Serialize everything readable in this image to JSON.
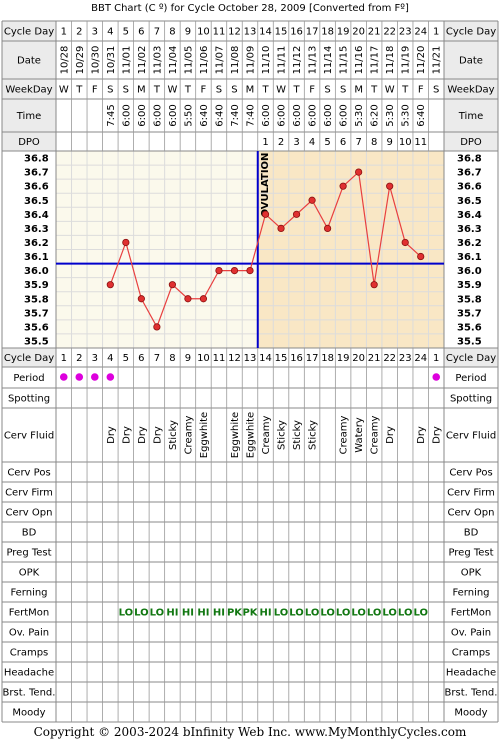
{
  "title": "BBT Chart (C º) for Cycle October 28, 2009  [Converted from Fº]",
  "footer": "Copyright © 2003-2024 bInfinity Web Inc.    www.MyMonthlyCycles.com",
  "colors": {
    "header_bg": "#ebebeb",
    "follicular_bg": "#fbf9ec",
    "luteal_bg": "#f9e7c5",
    "grid": "#dcdcdc",
    "coverline": "#0000cc",
    "ovulation_line": "#0000cc",
    "temp_line": "#e84040",
    "temp_point": "#e03030",
    "period_dot": "#dd00dd",
    "fertmon_text": "#117711"
  },
  "row_labels": {
    "cycle_day": "Cycle Day",
    "date": "Date",
    "weekday": "WeekDay",
    "time": "Time",
    "dpo": "DPO",
    "period": "Period",
    "spotting": "Spotting",
    "cerv_fluid": "Cerv Fluid",
    "cerv_pos": "Cerv Pos",
    "cerv_firm": "Cerv Firm",
    "cerv_opn": "Cerv Opn",
    "bd": "BD",
    "preg_test": "Preg Test",
    "opk": "OPK",
    "ferning": "Ferning",
    "fertmon": "FertMon",
    "ov_pain": "Ov. Pain",
    "cramps": "Cramps",
    "headache": "Headache",
    "brst_tend": "Brst. Tend.",
    "moody": "Moody"
  },
  "cycle_days": [
    "1",
    "2",
    "3",
    "4",
    "5",
    "6",
    "7",
    "8",
    "9",
    "10",
    "11",
    "12",
    "13",
    "14",
    "15",
    "16",
    "17",
    "18",
    "19",
    "20",
    "21",
    "22",
    "23",
    "24",
    "1"
  ],
  "dates": [
    "10/28",
    "10/29",
    "10/30",
    "10/31",
    "11/01",
    "11/02",
    "11/03",
    "11/04",
    "11/05",
    "11/06",
    "11/07",
    "11/08",
    "11/09",
    "11/10",
    "11/11",
    "11/12",
    "11/13",
    "11/14",
    "11/15",
    "11/16",
    "11/17",
    "11/18",
    "11/19",
    "11/20",
    "11/21"
  ],
  "weekdays": [
    "W",
    "T",
    "F",
    "S",
    "S",
    "M",
    "T",
    "W",
    "T",
    "F",
    "S",
    "S",
    "M",
    "T",
    "W",
    "T",
    "F",
    "S",
    "S",
    "M",
    "T",
    "W",
    "T",
    "F",
    "S"
  ],
  "times": [
    "",
    "",
    "",
    "7:45",
    "6:00",
    "6:00",
    "6:00",
    "6:00",
    "5:50",
    "6:40",
    "6:40",
    "7:40",
    "7:40",
    "6:00",
    "6:00",
    "6:00",
    "6:00",
    "6:00",
    "6:00",
    "5:30",
    "6:20",
    "5:30",
    "5:30",
    "6:40",
    ""
  ],
  "dpo": [
    "",
    "",
    "",
    "",
    "",
    "",
    "",
    "",
    "",
    "",
    "",
    "",
    "",
    "1",
    "2",
    "3",
    "4",
    "5",
    "6",
    "7",
    "8",
    "9",
    "10",
    "11",
    ""
  ],
  "period": [
    true,
    true,
    true,
    true,
    false,
    false,
    false,
    false,
    false,
    false,
    false,
    false,
    false,
    false,
    false,
    false,
    false,
    false,
    false,
    false,
    false,
    false,
    false,
    false,
    true
  ],
  "cerv_fluid": [
    "",
    "",
    "",
    "Dry",
    "Dry",
    "Dry",
    "Dry",
    "Sticky",
    "Creamy",
    "Eggwhite",
    "",
    "Eggwhite",
    "Eggwhite",
    "Creamy",
    "Sticky",
    "Sticky",
    "Sticky",
    "",
    "Creamy",
    "Watery",
    "Creamy",
    "Dry",
    "",
    "Dry",
    "Dry"
  ],
  "fertmon": [
    "",
    "",
    "",
    "",
    "LO",
    "LO",
    "LO",
    "HI",
    "HI",
    "HI",
    "HI",
    "PK",
    "PK",
    "HI",
    "LO",
    "LO",
    "LO",
    "LO",
    "LO",
    "LO",
    "LO",
    "LO",
    "LO",
    "LO",
    ""
  ],
  "ovulation_label": "OVULATION",
  "chart_data": {
    "type": "line",
    "x": [
      1,
      2,
      3,
      4,
      5,
      6,
      7,
      8,
      9,
      10,
      11,
      12,
      13,
      14,
      15,
      16,
      17,
      18,
      19,
      20,
      21,
      22,
      23,
      24,
      25
    ],
    "temps": [
      null,
      null,
      null,
      35.9,
      36.2,
      35.8,
      35.6,
      35.9,
      35.8,
      35.8,
      36.0,
      36.0,
      36.0,
      36.4,
      36.3,
      36.4,
      36.5,
      36.3,
      36.6,
      36.7,
      35.9,
      36.6,
      36.2,
      36.1,
      null
    ],
    "coverline": 36.05,
    "ovulation_after_day": 13,
    "y_ticks": [
      "36.8",
      "36.7",
      "36.6",
      "36.5",
      "36.4",
      "36.3",
      "36.2",
      "36.1",
      "36.0",
      "35.9",
      "35.8",
      "35.7",
      "35.6",
      "35.5"
    ],
    "ylim": [
      35.5,
      36.8
    ],
    "grid": true
  }
}
